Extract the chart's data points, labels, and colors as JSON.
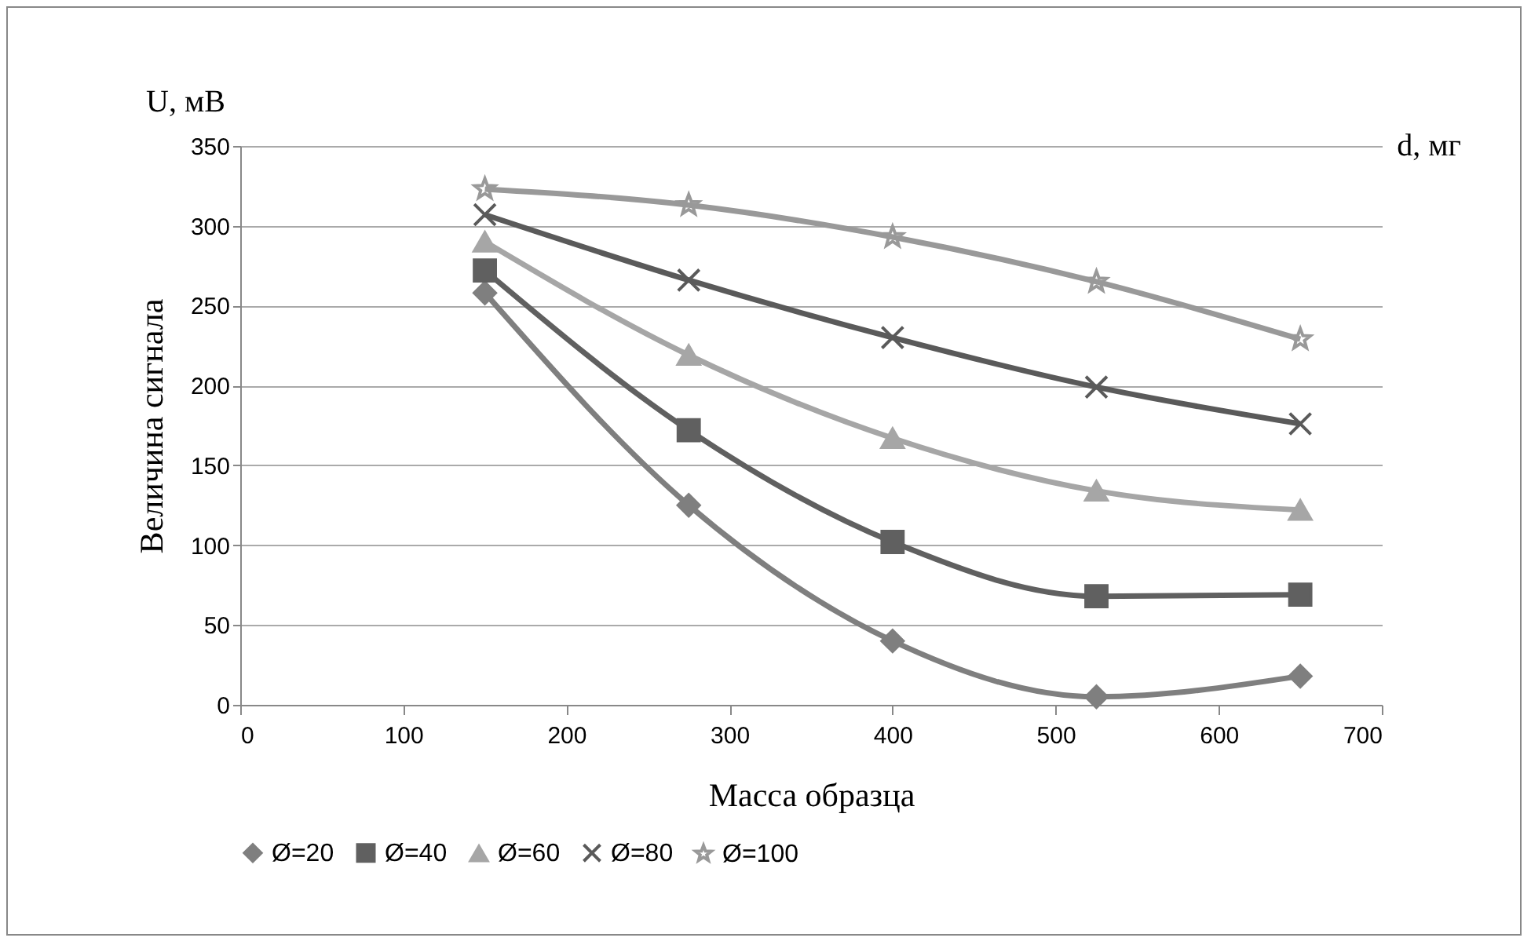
{
  "chart_data": {
    "type": "line",
    "xlabel": "Масса образца",
    "ylabel": "Величина сигнала",
    "annotations": [
      "U, мВ",
      "d, мг"
    ],
    "x": [
      150,
      275,
      400,
      525,
      650
    ],
    "xlim": [
      0,
      700
    ],
    "xticks": [
      0,
      100,
      200,
      300,
      400,
      500,
      600,
      700
    ],
    "ylim": [
      0,
      350
    ],
    "yticks": [
      0,
      50,
      100,
      150,
      200,
      250,
      300,
      350
    ],
    "grid": "y",
    "legend": "bottom",
    "line_style": "solid",
    "series": [
      {
        "name": "Ø=20",
        "color": "#7f7f7f",
        "marker": "diamond",
        "values": [
          258,
          125,
          40,
          5,
          18
        ]
      },
      {
        "name": "Ø=40",
        "color": "#606060",
        "marker": "square",
        "values": [
          272,
          172,
          102,
          68,
          69
        ]
      },
      {
        "name": "Ø=60",
        "color": "#a6a6a6",
        "marker": "triangle",
        "values": [
          290,
          219,
          167,
          134,
          122
        ]
      },
      {
        "name": "Ø=80",
        "color": "#5a5a5a",
        "marker": "cross",
        "values": [
          307,
          266,
          230,
          199,
          176
        ]
      },
      {
        "name": "Ø=100",
        "color": "#999999",
        "marker": "star",
        "values": [
          323,
          313,
          293,
          265,
          229
        ]
      }
    ]
  }
}
